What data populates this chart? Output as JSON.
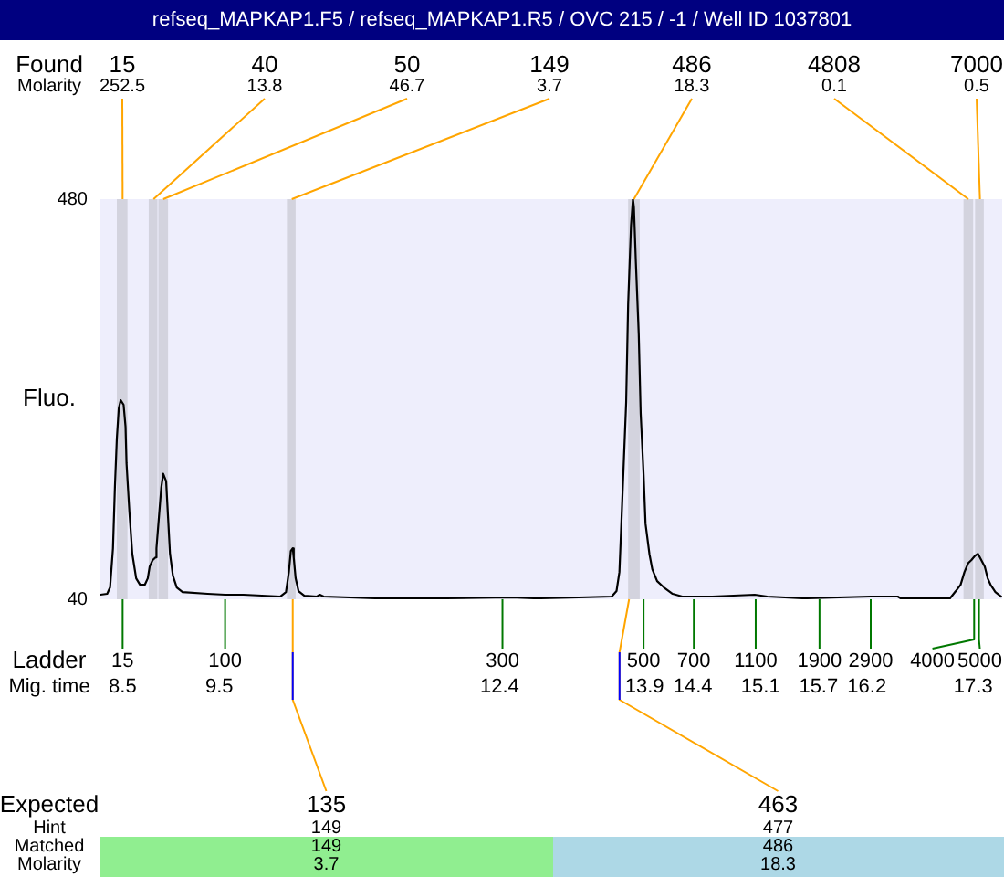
{
  "chart_data": {
    "type": "line",
    "title": "refseq_MAPKAP1.F5 / refseq_MAPKAP1.R5 / OVC 215 / -1 / Well ID 1037801",
    "ylabel": "Fluo.",
    "xlabel": "Mig. time",
    "x": [
      8.27,
      8.34,
      8.37,
      8.4,
      8.42,
      8.44,
      8.46,
      8.48,
      8.51,
      8.53,
      8.54,
      8.57,
      8.6,
      8.64,
      8.68,
      8.73,
      8.76,
      8.78,
      8.81,
      8.84,
      8.85,
      8.87,
      8.9,
      8.92,
      8.95,
      8.97,
      8.99,
      9.02,
      9.06,
      9.12,
      9.38,
      9.56,
      9.75,
      10.13,
      10.19,
      10.22,
      10.24,
      10.26,
      10.27,
      10.29,
      10.32,
      10.38,
      10.51,
      10.54,
      10.58,
      11.14,
      11.77,
      12.52,
      12.78,
      13.22,
      13.56,
      13.61,
      13.64,
      13.66,
      13.68,
      13.71,
      13.73,
      13.76,
      13.78,
      13.79,
      13.81,
      13.84,
      13.86,
      13.89,
      13.91,
      13.95,
      13.98,
      14.03,
      14.1,
      14.19,
      14.29,
      14.6,
      15.04,
      15.17,
      15.55,
      16.24,
      16.52,
      16.55,
      17.06,
      17.12,
      17.17,
      17.21,
      17.25,
      17.28,
      17.32,
      17.35,
      17.38,
      17.42,
      17.45,
      17.48,
      17.53,
      17.59
    ],
    "series": [
      {
        "color": "#000000",
        "values": [
          45,
          46,
          53,
          96,
          163,
          217,
          250,
          259,
          254,
          230,
          190,
          136,
          90,
          63,
          56,
          56,
          63,
          76,
          83,
          86,
          96,
          123,
          163,
          178,
          170,
          130,
          90,
          66,
          53,
          48,
          46,
          45,
          45,
          43,
          48,
          70,
          93,
          96,
          86,
          63,
          49,
          44,
          43,
          45,
          43,
          41,
          41,
          42,
          41,
          42,
          43,
          49,
          70,
          123,
          177,
          257,
          364,
          451,
          480,
          471,
          411,
          331,
          244,
          177,
          123,
          90,
          73,
          60,
          53,
          46,
          43,
          43,
          45,
          43,
          41,
          43,
          43,
          41,
          41,
          49,
          56,
          70,
          80,
          83,
          88,
          90,
          84,
          76,
          63,
          56,
          48,
          43
        ]
      }
    ],
    "xlim": [
      8.27,
      17.6
    ],
    "ylim": [
      40,
      480
    ],
    "yticks": [
      40,
      480
    ],
    "xticks": [
      8.5,
      9.5,
      12.4,
      13.9,
      14.4,
      15.1,
      15.7,
      16.2,
      17.3
    ],
    "bands": [
      {
        "axis": "x",
        "from": 8.44,
        "to": 8.55,
        "label": "15",
        "color": "#d3d3de"
      },
      {
        "axis": "x",
        "from": 8.77,
        "to": 8.86,
        "label": "40",
        "color": "#d3d3de"
      },
      {
        "axis": "x",
        "from": 8.87,
        "to": 8.97,
        "label": "50",
        "color": "#d3d3de"
      },
      {
        "axis": "x",
        "from": 10.2,
        "to": 10.29,
        "label": "149",
        "color": "#d3d3de"
      },
      {
        "axis": "x",
        "from": 13.73,
        "to": 13.85,
        "label": "486",
        "color": "#d3d3de"
      },
      {
        "axis": "x",
        "from": 17.2,
        "to": 17.3,
        "label": "4808",
        "color": "#d3d3de"
      },
      {
        "axis": "x",
        "from": 17.32,
        "to": 17.41,
        "label": "7000",
        "color": "#d3d3de"
      }
    ],
    "annotations": [
      "Found",
      "Molarity",
      {
        "text": "252.5",
        "x": 8.5,
        "y": 480
      },
      {
        "text": "13.8",
        "x": 8.82,
        "y": 480
      },
      {
        "text": "46.7",
        "x": 8.92,
        "y": 480
      },
      {
        "text": "3.7",
        "x": 10.25,
        "y": 480
      },
      {
        "text": "18.3",
        "x": 13.79,
        "y": 480
      },
      {
        "text": "0.1",
        "x": 17.25,
        "y": 480
      },
      {
        "text": "0.5",
        "x": 17.37,
        "y": 480
      },
      "Ladder",
      {
        "text": "15",
        "x": 8.5,
        "y": 40
      },
      {
        "text": "100",
        "x": 9.56,
        "y": 40
      },
      {
        "text": "300",
        "x": 12.43,
        "y": 40
      },
      {
        "text": "500",
        "x": 13.89,
        "y": 40
      },
      {
        "text": "700",
        "x": 14.41,
        "y": 40
      },
      {
        "text": "1100",
        "x": 15.05,
        "y": 40
      },
      {
        "text": "1900",
        "x": 15.71,
        "y": 40
      },
      {
        "text": "2900",
        "x": 16.24,
        "y": 40
      },
      {
        "text": "4000",
        "x": 17.31,
        "y": 40
      },
      {
        "text": "5000",
        "x": 17.36,
        "y": 40
      },
      "Expected",
      {
        "text": "135",
        "x": 10.26,
        "y": 40
      },
      {
        "text": "463",
        "x": 13.74,
        "y": 40
      },
      "Hint",
      "149",
      "477",
      "Matched",
      "149",
      "486",
      "Molarity",
      "3.7",
      "18.3"
    ],
    "marker": "none"
  }
}
